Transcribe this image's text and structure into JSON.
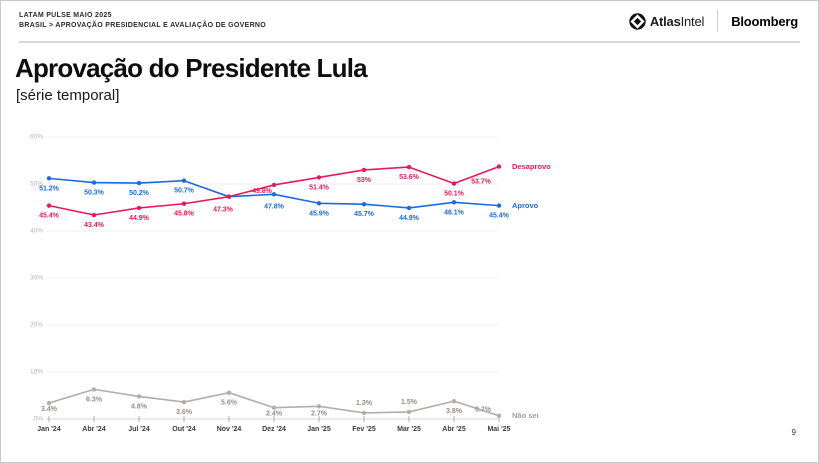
{
  "header": {
    "kicker_line1": "LATAM PULSE MAIO 2025",
    "kicker_line2": "BRASIL > APROVAÇÃO PRESIDENCIAL E AVALIAÇÃO DE GOVERNO",
    "logos": {
      "atlas_bold": "Atlas",
      "atlas_regular": "Intel",
      "bloomberg": "Bloomberg"
    }
  },
  "title": "Aprovação do Presidente Lula",
  "subtitle": "[série temporal]",
  "page_number": "9",
  "colors": {
    "approve_blue": "#1a6be0",
    "disapprove_red": "#e5195f",
    "dontknow_gray": "#aaa49e",
    "grid": "#f0efee",
    "axis": "#d6d4d2",
    "tick": "#a6a39f",
    "x_label": "#3d3b39",
    "y_label": "#b8b3ae"
  },
  "chart_data": {
    "type": "line",
    "title": "Aprovação do Presidente Lula [série temporal]",
    "xlabel": "",
    "ylabel": "",
    "ylim": [
      0,
      60
    ],
    "yticks": [
      "0%",
      "10%",
      "20%",
      "30%",
      "40%",
      "50%",
      "60%"
    ],
    "grid": true,
    "legend_position": "right-of-last-point",
    "categories": [
      "Jan '24",
      "Abr '24",
      "Jul '24",
      "Out '24",
      "Nov '24",
      "Dez '24",
      "Jan '25",
      "Fev '25",
      "Mar '25",
      "Abr '25",
      "Mai '25"
    ],
    "series": [
      {
        "name": "Não sei",
        "color": "#b3ada7",
        "label_color": "#948e88",
        "legend_color": "#a39d97",
        "values": [
          3.4,
          6.3,
          4.8,
          3.6,
          5.6,
          2.4,
          2.7,
          1.3,
          1.5,
          3.8,
          0.7
        ],
        "labels": [
          "3.4%",
          "6.3%",
          "4.8%",
          "3.6%",
          "5.6%",
          "2.4%",
          "2.7%",
          "1.3%",
          "1.5%",
          "3.8%",
          "0.7%"
        ],
        "label_offsets": {
          "0": [
            0,
            -4
          ],
          "5": [
            0,
            -4
          ],
          "6": [
            0,
            -3
          ],
          "7": [
            0,
            -20
          ],
          "8": [
            0,
            -20
          ],
          "10": [
            -16,
            -16
          ]
        }
      },
      {
        "name": "Aprovo",
        "color": "#1a6be0",
        "label_color": "#1a6be0",
        "legend_color": "#1a6be0",
        "values": [
          51.2,
          50.3,
          50.2,
          50.7,
          47.3,
          47.8,
          45.9,
          45.7,
          44.9,
          46.1,
          45.4
        ],
        "labels": [
          "51.2%",
          "50.3%",
          "50.2%",
          "50.7%",
          null,
          "47.8%",
          "45.9%",
          "45.7%",
          "44.9%",
          "46.1%",
          "45.4%"
        ],
        "label_offsets": {
          "5": [
            0,
            2
          ]
        }
      },
      {
        "name": "Desaprovo",
        "color": "#e5195f",
        "label_color": "#e5195f",
        "legend_color": "#e5195f",
        "values": [
          45.4,
          43.4,
          44.9,
          45.8,
          47.3,
          49.8,
          51.4,
          53.0,
          53.6,
          50.1,
          53.7
        ],
        "labels": [
          "45.4%",
          "43.4%",
          "44.9%",
          "45.8%",
          "47.3%",
          "49.8%",
          "51.4%",
          "53%",
          "53.6%",
          "50.1%",
          "53.7%"
        ],
        "label_offsets": {
          "4": [
            -6,
            3
          ],
          "5": [
            -12,
            -4
          ],
          "10": [
            -18,
            5
          ]
        }
      }
    ]
  }
}
